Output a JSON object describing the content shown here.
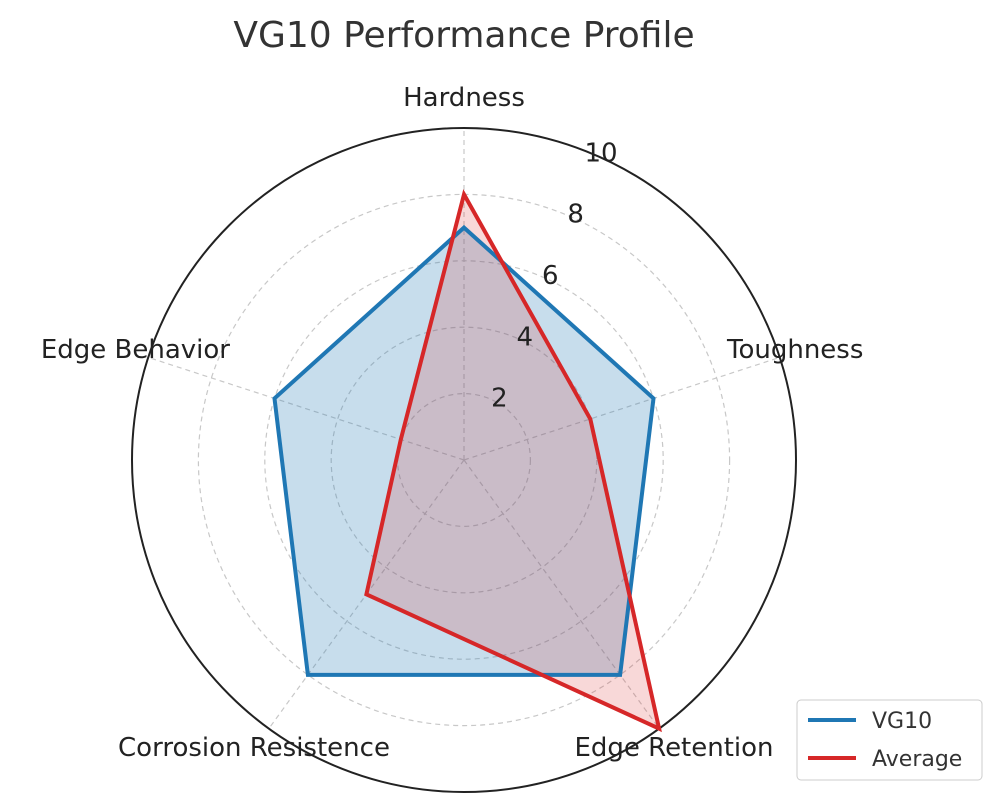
{
  "chart_data": {
    "type": "radar",
    "title": "VG10 Performance Profile",
    "axes": [
      "Hardness",
      "Toughness",
      "Edge Retention",
      "Corrosion Resistence",
      "Edge Behavior"
    ],
    "rlim": [
      0,
      10
    ],
    "rticks": [
      "2",
      "4",
      "6",
      "8",
      "10"
    ],
    "grid": true,
    "legend_position": "bottom-right",
    "series": [
      {
        "name": "VG10",
        "values": [
          7,
          6,
          8,
          8,
          6
        ],
        "color": "#1f77b4",
        "fill": "rgba(31,119,180,0.25)"
      },
      {
        "name": "Average",
        "values": [
          8,
          4,
          10,
          5,
          2
        ],
        "color": "#d62728",
        "fill": "rgba(214,39,40,0.18)"
      }
    ]
  }
}
